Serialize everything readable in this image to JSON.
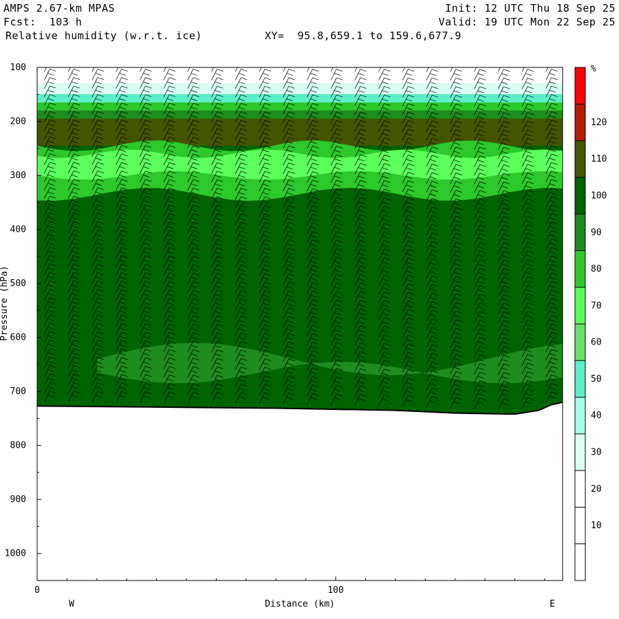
{
  "header": {
    "model": "AMPS 2.67-km MPAS",
    "fcst": "Fcst:  103 h",
    "field": "Relative humidity (w.r.t. ice)",
    "xy": "XY=  95.8,659.1 to 159.6,677.9",
    "init": "Init: 12 UTC Thu 18 Sep 25",
    "valid": "Valid: 19 UTC Mon 22 Sep 25"
  },
  "chart_data": {
    "type": "heatmap",
    "xlabel": "Distance (km)",
    "ylabel": "Pressure (hPa)",
    "xlim": [
      0,
      176
    ],
    "ylim": [
      1050,
      100
    ],
    "x_ticks": [
      "0",
      "100"
    ],
    "x_tick_values": [
      0,
      100
    ],
    "y_ticks": [
      "100",
      "200",
      "300",
      "400",
      "500",
      "600",
      "700",
      "800",
      "900",
      "1000"
    ],
    "y_tick_values": [
      100,
      200,
      300,
      400,
      500,
      600,
      700,
      800,
      900,
      1000
    ],
    "left_end_label": "W",
    "right_end_label": "E",
    "colorbar": {
      "unit": "%",
      "labels": [
        "10",
        "20",
        "30",
        "40",
        "50",
        "60",
        "70",
        "80",
        "90",
        "100",
        "110",
        "120"
      ],
      "levels": [
        0,
        10,
        20,
        30,
        40,
        50,
        60,
        70,
        80,
        90,
        100,
        110,
        120,
        130
      ],
      "colors": [
        "#ffffff",
        "#ffffff",
        "#ffffff",
        "#d8fff2",
        "#a6ffe8",
        "#5cf0c8",
        "#66e066",
        "#5cff5c",
        "#2cc82c",
        "#1e8c1e",
        "#006400",
        "#445500",
        "#b41e00",
        "#ff0000"
      ]
    },
    "terrain_pressure_hpa": [
      [
        0,
        727
      ],
      [
        20,
        728
      ],
      [
        40,
        729
      ],
      [
        60,
        730
      ],
      [
        80,
        731
      ],
      [
        100,
        733
      ],
      [
        120,
        735
      ],
      [
        140,
        740
      ],
      [
        160,
        742
      ],
      [
        168,
        735
      ],
      [
        172,
        725
      ],
      [
        176,
        720
      ]
    ],
    "field_regions": {
      "top_bands_hpa": [
        {
          "from": 100,
          "to": 130,
          "rh": 15
        },
        {
          "from": 130,
          "to": 150,
          "rh": 35
        },
        {
          "from": 150,
          "to": 165,
          "rh": 55
        },
        {
          "from": 165,
          "to": 180,
          "rh": 80
        },
        {
          "from": 180,
          "to": 195,
          "rh": 95
        }
      ],
      "upper_wet_layer_hpa": [
        195,
        245
      ],
      "mid_green_layer_hpa": [
        245,
        335
      ],
      "background_rh": 105
    },
    "note": "wind barbs throughout"
  },
  "colors": {
    "frame": "#000000",
    "background": "#ffffff",
    "barb": "#000000"
  }
}
